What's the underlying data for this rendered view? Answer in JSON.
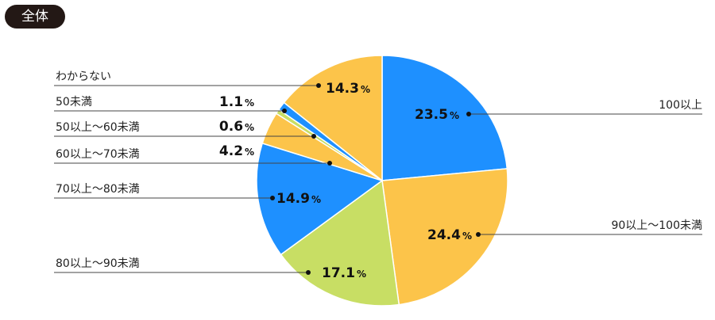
{
  "header": {
    "badge": "全体"
  },
  "chart_data": {
    "type": "pie",
    "unit": "%",
    "slices": [
      {
        "label": "100以上",
        "value": 23.5,
        "value_text": "23.5",
        "color": "#1e90ff"
      },
      {
        "label": "90以上〜100未満",
        "value": 24.4,
        "value_text": "24.4",
        "color": "#fcc44a"
      },
      {
        "label": "80以上〜90未満",
        "value": 17.1,
        "value_text": "17.1",
        "color": "#c8de64"
      },
      {
        "label": "70以上〜80未満",
        "value": 14.9,
        "value_text": "14.9",
        "color": "#1e90ff"
      },
      {
        "label": "60以上〜70未満",
        "value": 4.2,
        "value_text": "4.2",
        "color": "#fcc44a"
      },
      {
        "label": "50以上〜60未満",
        "value": 0.6,
        "value_text": "0.6",
        "color": "#c8de64"
      },
      {
        "label": "50未満",
        "value": 1.1,
        "value_text": "1.1",
        "color": "#1e90ff"
      },
      {
        "label": "わからない",
        "value": 14.3,
        "value_text": "14.3",
        "color": "#fcc44a"
      }
    ]
  }
}
